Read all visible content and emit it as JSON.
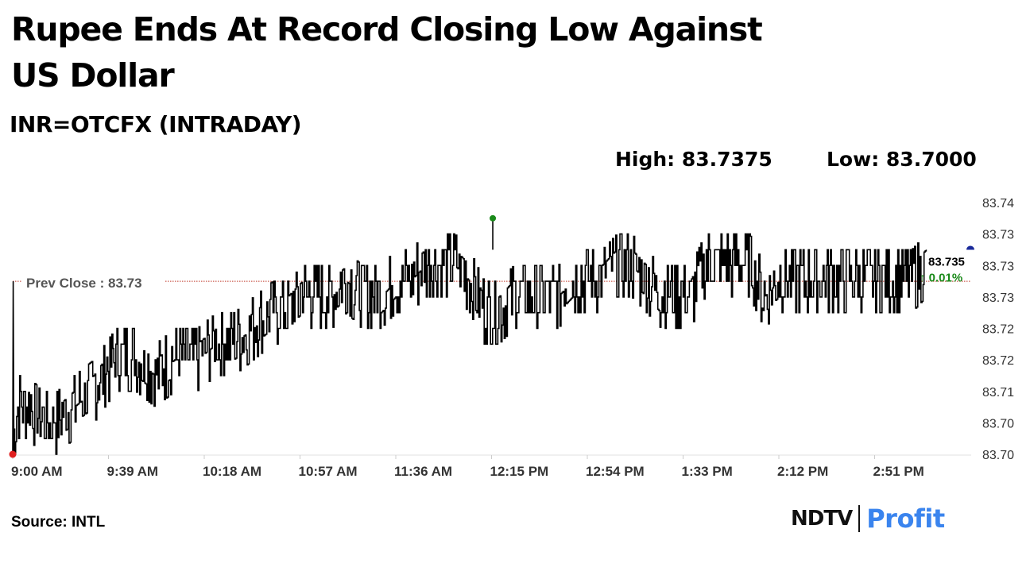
{
  "header": {
    "title": "Rupee Ends At Record Closing Low Against US Dollar",
    "subtitle": "INR=OTCFX (INTRADAY)",
    "high_label": "High: 83.7375",
    "low_label": "Low: 83.7000"
  },
  "footer": {
    "source": "Source: INTL",
    "logo_ndtv": "NDTV",
    "logo_profit": "Profit"
  },
  "colors": {
    "line": "#000000",
    "prev_close": "#c0392b",
    "high_marker": "#1a8a1a",
    "low_marker": "#e02020",
    "last_marker": "#1a2a9a",
    "change_up": "#1a8a1a",
    "axis_text": "#333333"
  },
  "chart_data": {
    "type": "line",
    "title": "INR=OTCFX (INTRADAY)",
    "xlabel": "",
    "ylabel": "",
    "ylim": [
      83.7,
      83.74
    ],
    "ytick_values": [
      83.7,
      83.705,
      83.71,
      83.715,
      83.72,
      83.725,
      83.73,
      83.735,
      83.74
    ],
    "ytick_labels": [
      "83.70",
      "83.70",
      "83.71",
      "83.72",
      "83.72",
      "83.73",
      "83.73",
      "83.73",
      "83.74"
    ],
    "xtick_labels": [
      "9:00 AM",
      "9:39 AM",
      "10:18 AM",
      "10:57 AM",
      "11:36 AM",
      "12:15 PM",
      "12:54 PM",
      "1:33 PM",
      "2:12 PM",
      "2:51 PM"
    ],
    "time_start": "9:00 AM",
    "time_step_minutes": 39,
    "prev_close": {
      "label": "Prev Close : 83.73",
      "value": 83.7275
    },
    "last": {
      "value": "83.735",
      "change": "↑ 0.01%"
    },
    "high_point": {
      "time": "12:15 PM",
      "value": 83.7375
    },
    "low_point": {
      "time": "9:00 AM",
      "value": 83.7
    },
    "series": [
      {
        "levels": [
          [
            0,
            83.7
          ],
          [
            2,
            83.7075
          ],
          [
            6,
            83.7075
          ],
          [
            12,
            83.705
          ],
          [
            18,
            83.705
          ],
          [
            25,
            83.7075
          ],
          [
            33,
            83.71
          ],
          [
            42,
            83.715
          ],
          [
            50,
            83.715
          ],
          [
            58,
            83.7125
          ],
          [
            66,
            83.715
          ],
          [
            75,
            83.715
          ],
          [
            83,
            83.7175
          ],
          [
            90,
            83.7175
          ],
          [
            98,
            83.72
          ],
          [
            106,
            83.7225
          ],
          [
            112,
            83.7225
          ],
          [
            118,
            83.725
          ],
          [
            124,
            83.725
          ],
          [
            130,
            83.725
          ],
          [
            136,
            83.7275
          ],
          [
            142,
            83.725
          ],
          [
            150,
            83.725
          ],
          [
            156,
            83.7275
          ],
          [
            162,
            83.7275
          ],
          [
            168,
            83.73
          ],
          [
            174,
            83.73
          ],
          [
            180,
            83.73
          ],
          [
            186,
            83.7275
          ],
          [
            192,
            83.7225
          ],
          [
            198,
            83.7225
          ],
          [
            204,
            83.725
          ],
          [
            210,
            83.725
          ],
          [
            216,
            83.725
          ],
          [
            222,
            83.725
          ],
          [
            228,
            83.7275
          ],
          [
            234,
            83.7275
          ],
          [
            240,
            83.7275
          ],
          [
            246,
            83.73
          ],
          [
            252,
            83.73
          ],
          [
            258,
            83.7275
          ],
          [
            264,
            83.725
          ],
          [
            270,
            83.725
          ],
          [
            276,
            83.725
          ],
          [
            282,
            83.73
          ],
          [
            288,
            83.73
          ],
          [
            294,
            83.73
          ],
          [
            300,
            83.73
          ],
          [
            306,
            83.725
          ],
          [
            312,
            83.7275
          ],
          [
            318,
            83.7275
          ],
          [
            324,
            83.7275
          ],
          [
            330,
            83.7275
          ],
          [
            336,
            83.7275
          ],
          [
            342,
            83.7275
          ],
          [
            348,
            83.7275
          ],
          [
            354,
            83.7275
          ],
          [
            360,
            83.7275
          ],
          [
            366,
            83.7275
          ],
          [
            372,
            83.73
          ]
        ]
      }
    ]
  }
}
